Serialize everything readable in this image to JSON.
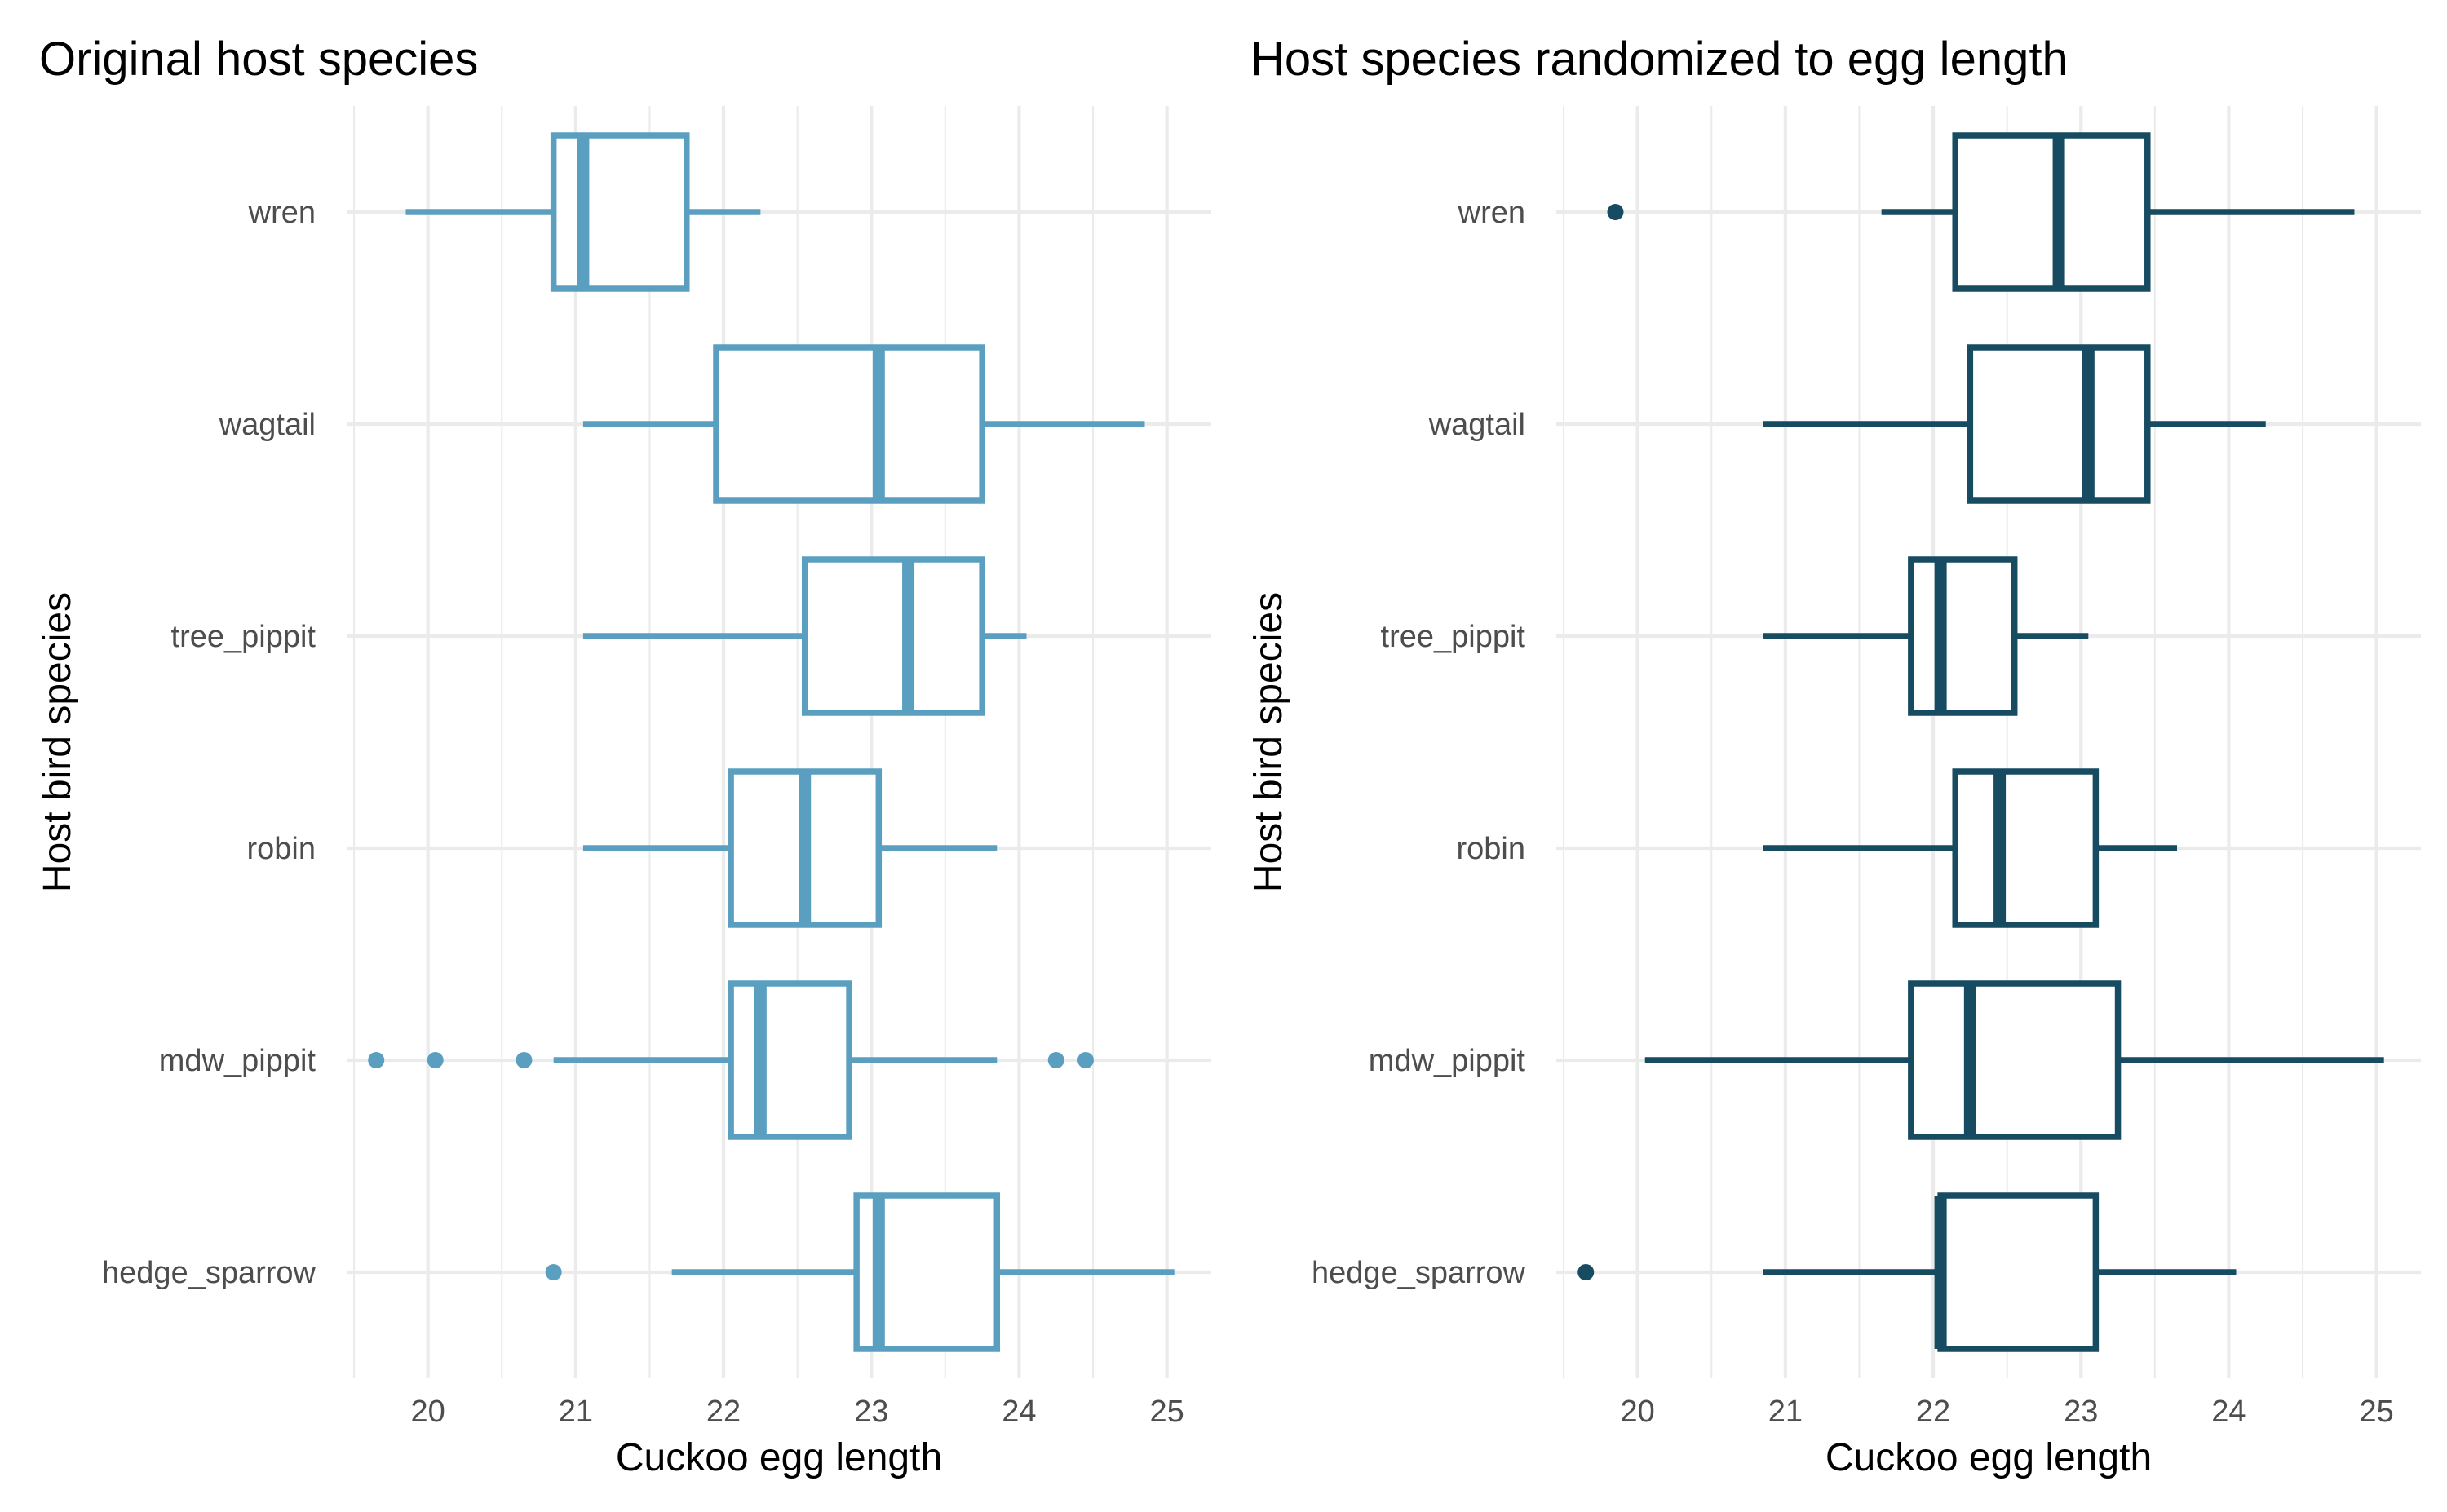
{
  "chart_data": [
    {
      "type": "boxplot",
      "title": "Original host species",
      "xlabel": "Cuckoo egg length",
      "ylabel": "Host bird species",
      "xlim": [
        19.45,
        25.3
      ],
      "x_ticks": [
        20,
        21,
        22,
        23,
        24,
        25
      ],
      "grid": true,
      "color": "#5b9fc0",
      "categories": [
        "hedge_sparrow",
        "mdw_pippit",
        "robin",
        "tree_pippit",
        "wagtail",
        "wren"
      ],
      "boxes": [
        {
          "category": "hedge_sparrow",
          "whisker_low": 21.65,
          "q1": 22.9,
          "median": 23.05,
          "q3": 23.85,
          "whisker_high": 25.05,
          "outliers": [
            20.85
          ]
        },
        {
          "category": "mdw_pippit",
          "whisker_low": 20.85,
          "q1": 22.05,
          "median": 22.25,
          "q3": 22.85,
          "whisker_high": 23.85,
          "outliers": [
            19.65,
            20.05,
            20.65,
            24.25,
            24.45
          ]
        },
        {
          "category": "robin",
          "whisker_low": 21.05,
          "q1": 22.05,
          "median": 22.55,
          "q3": 23.05,
          "whisker_high": 23.85,
          "outliers": []
        },
        {
          "category": "tree_pippit",
          "whisker_low": 21.05,
          "q1": 22.55,
          "median": 23.25,
          "q3": 23.75,
          "whisker_high": 24.05,
          "outliers": []
        },
        {
          "category": "wagtail",
          "whisker_low": 21.05,
          "q1": 21.95,
          "median": 23.05,
          "q3": 23.75,
          "whisker_high": 24.85,
          "outliers": []
        },
        {
          "category": "wren",
          "whisker_low": 19.85,
          "q1": 20.85,
          "median": 21.05,
          "q3": 21.75,
          "whisker_high": 22.25,
          "outliers": []
        }
      ]
    },
    {
      "type": "boxplot",
      "title": "Host species randomized to egg length",
      "xlabel": "Cuckoo egg length",
      "ylabel": "Host bird species",
      "xlim": [
        19.45,
        25.3
      ],
      "x_ticks": [
        20,
        21,
        22,
        23,
        24,
        25
      ],
      "grid": true,
      "color": "#164b61",
      "categories": [
        "hedge_sparrow",
        "mdw_pippit",
        "robin",
        "tree_pippit",
        "wagtail",
        "wren"
      ],
      "boxes": [
        {
          "category": "hedge_sparrow",
          "whisker_low": 20.85,
          "q1": 22.05,
          "median": 22.05,
          "q3": 23.1,
          "whisker_high": 24.05,
          "outliers": [
            19.65
          ]
        },
        {
          "category": "mdw_pippit",
          "whisker_low": 20.05,
          "q1": 21.85,
          "median": 22.25,
          "q3": 23.25,
          "whisker_high": 25.05,
          "outliers": []
        },
        {
          "category": "robin",
          "whisker_low": 20.85,
          "q1": 22.15,
          "median": 22.45,
          "q3": 23.1,
          "whisker_high": 23.65,
          "outliers": []
        },
        {
          "category": "tree_pippit",
          "whisker_low": 20.85,
          "q1": 21.85,
          "median": 22.05,
          "q3": 22.55,
          "whisker_high": 23.05,
          "outliers": []
        },
        {
          "category": "wagtail",
          "whisker_low": 20.85,
          "q1": 22.25,
          "median": 23.05,
          "q3": 23.45,
          "whisker_high": 24.25,
          "outliers": []
        },
        {
          "category": "wren",
          "whisker_low": 21.65,
          "q1": 22.15,
          "median": 22.85,
          "q3": 23.45,
          "whisker_high": 24.85,
          "outliers": [
            19.85
          ]
        }
      ]
    }
  ]
}
